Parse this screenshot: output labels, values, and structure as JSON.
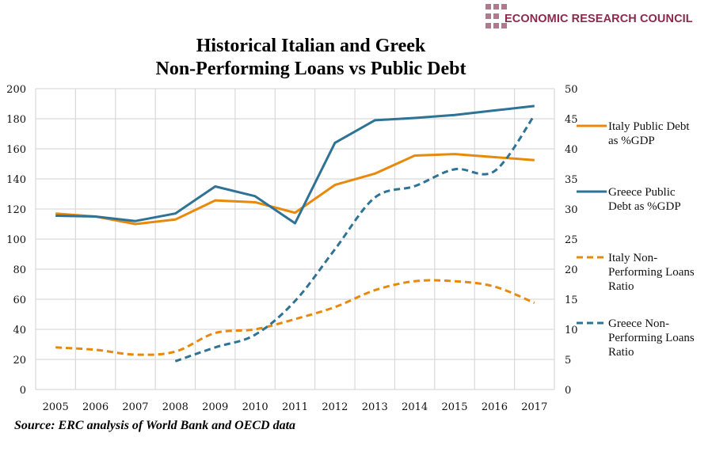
{
  "header": {
    "logo_text": "ECONOMIC RESEARCH COUNCIL",
    "logo_color": "#8a2a4a"
  },
  "title": {
    "line1": "Historical Italian and Greek",
    "line2": "Non-Performing Loans vs Public Debt"
  },
  "source": "Source: ERC analysis of World Bank and OECD data",
  "chart_data": {
    "type": "line",
    "title": "Historical Italian and Greek Non-Performing Loans vs Public Debt",
    "categories": [
      "2005",
      "2006",
      "2007",
      "2008",
      "2009",
      "2010",
      "2011",
      "2012",
      "2013",
      "2014",
      "2015",
      "2016",
      "2017"
    ],
    "y_left": {
      "label": "",
      "range": [
        0,
        200
      ],
      "ticks": [
        "0",
        "20",
        "40",
        "60",
        "80",
        "100",
        "120",
        "140",
        "160",
        "180",
        "200"
      ]
    },
    "y_right": {
      "label": "",
      "range": [
        0,
        50
      ],
      "ticks": [
        "0",
        "5",
        "10",
        "15",
        "20",
        "25",
        "30",
        "35",
        "40",
        "45",
        "50"
      ]
    },
    "grid": true,
    "legend_position": "right",
    "series": [
      {
        "name": "Italy Public Debt as %GDP",
        "axis": "left",
        "style": "solid",
        "color": "#e8890c",
        "values": [
          117,
          115,
          110,
          113,
          125.7,
          124.5,
          117.5,
          136,
          143.5,
          155.5,
          156.5,
          154.5,
          152.5
        ]
      },
      {
        "name": "Greece Public Debt as %GDP",
        "axis": "left",
        "style": "solid",
        "color": "#2e7396",
        "values": [
          115.5,
          115,
          112,
          117,
          135,
          128.5,
          110.5,
          164,
          179,
          180.5,
          182.5,
          185.5,
          188.5
        ]
      },
      {
        "name": "Italy Non-Performing Loans Ratio",
        "axis": "right",
        "style": "dashed",
        "color": "#e8890c",
        "values": [
          7,
          6.6,
          5.8,
          6.3,
          9.4,
          10,
          11.7,
          13.7,
          16.5,
          18,
          18,
          17.1,
          14.4
        ]
      },
      {
        "name": "Greece Non-Performing Loans Ratio",
        "axis": "right",
        "style": "dashed",
        "color": "#2e7396",
        "values": [
          null,
          null,
          null,
          4.7,
          7,
          9.1,
          14.7,
          23.3,
          31.9,
          33.8,
          36.6,
          36.3,
          45.6
        ]
      }
    ],
    "legend": [
      {
        "label": "Italy Public Debt as %GDP",
        "line1": "Italy Public Debt",
        "line2": "as %GDP"
      },
      {
        "label": "Greece Public Debt as %GDP",
        "line1": "Greece Public",
        "line2": "Debt as %GDP"
      },
      {
        "label": "Italy Non-Performing Loans Ratio",
        "line1": "Italy Non-",
        "line2": "Performing Loans",
        "line3": "Ratio"
      },
      {
        "label": "Greece Non-Performing Loans Ratio",
        "line1": "Greece Non-",
        "line2": "Performing Loans",
        "line3": "Ratio"
      }
    ]
  }
}
